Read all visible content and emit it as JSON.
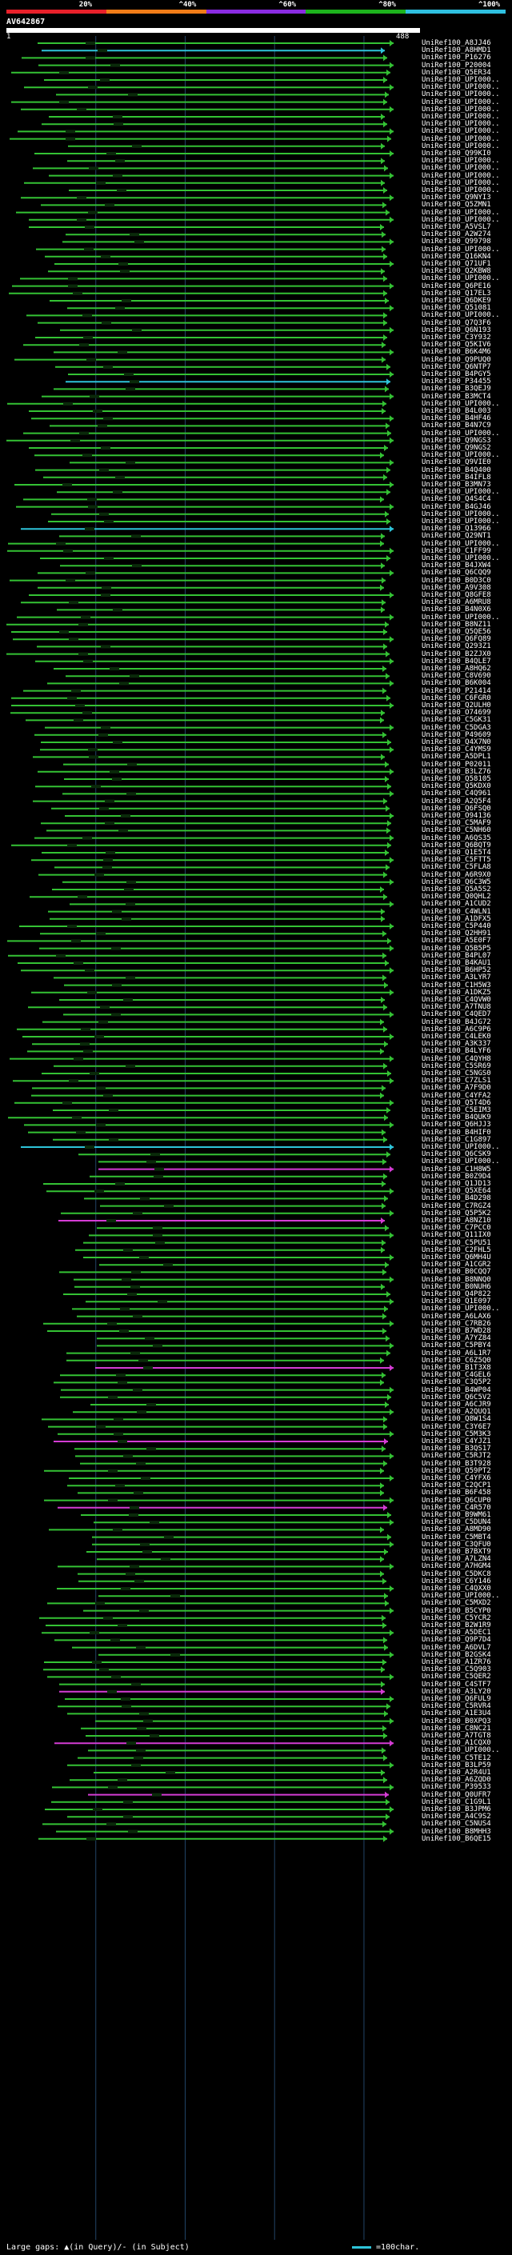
{
  "scale": {
    "ticks": [
      "20%",
      "^40%",
      "^60%",
      "^80%",
      "^100%"
    ],
    "colors": [
      "#e8202a",
      "#f07c18",
      "#8a2be2",
      "#1db31d",
      "#2fc0e0"
    ]
  },
  "query": {
    "id": "AV642867",
    "start": "1",
    "end": "488"
  },
  "colors": {
    "green": "#34c234",
    "cyan": "#2ec4d9",
    "magenta": "#d43cd4",
    "grid": "#224466"
  },
  "hits": [
    "UniRef100_A8JJ46",
    "UniRef100_A8HMD1",
    "UniRef100_P16276",
    "UniRef100_P20004",
    "UniRef100_Q5ER34",
    "UniRef100_UPI000..",
    "UniRef100_UPI000..",
    "UniRef100_UPI000..",
    "UniRef100_UPI000..",
    "UniRef100_UPI000..",
    "UniRef100_UPI000..",
    "UniRef100_UPI000..",
    "UniRef100_UPI000..",
    "UniRef100_UPI000..",
    "UniRef100_UPI000..",
    "UniRef100_Q99KI0",
    "UniRef100_UPI000..",
    "UniRef100_UPI000..",
    "UniRef100_UPI000..",
    "UniRef100_UPI000..",
    "UniRef100_UPI000..",
    "UniRef100_Q9NYI3",
    "UniRef100_Q5ZMN1",
    "UniRef100_UPI000..",
    "UniRef100_UPI000..",
    "UniRef100_A5VSL7",
    "UniRef100_A2W274",
    "UniRef100_Q99798",
    "UniRef100_UPI000..",
    "UniRef100_Q16KN4",
    "UniRef100_Q71UF1",
    "UniRef100_Q2KBW8",
    "UniRef100_UPI000..",
    "UniRef100_Q6PE16",
    "UniRef100_Q17EL3",
    "UniRef100_Q6DKE9",
    "UniRef100_Q51081",
    "UniRef100_UPI000..",
    "UniRef100_Q7Q3F6",
    "UniRef100_Q6N193",
    "UniRef100_C3Y932",
    "UniRef100_Q5KIV6",
    "UniRef100_B6K4M6",
    "UniRef100_Q9PUQ0",
    "UniRef100_Q6NTP7",
    "UniRef100_B4PGY5",
    "UniRef100_P34455",
    "UniRef100_B3QEJ9",
    "UniRef100_B3MCT4",
    "UniRef100_UPI000..",
    "UniRef100_B4L003",
    "UniRef100_B4HF46",
    "UniRef100_B4N7C9",
    "UniRef100_UPI000..",
    "UniRef100_Q9NGS3",
    "UniRef100_Q9NGS2",
    "UniRef100_UPI000..",
    "UniRef100_Q9VIE0",
    "UniRef100_B4Q400",
    "UniRef100_B4IFL8",
    "UniRef100_B3MN73",
    "UniRef100_UPI000..",
    "UniRef100_Q4S4C4",
    "UniRef100_B4GJ46",
    "UniRef100_UPI000..",
    "UniRef100_UPI000..",
    "UniRef100_Q13966",
    "UniRef100_Q29NT1",
    "UniRef100_UPI000..",
    "UniRef100_C1FF99",
    "UniRef100_UPI000..",
    "UniRef100_B4JXW4",
    "UniRef100_Q6CQQ9",
    "UniRef100_B0D3C0",
    "UniRef100_A9V308",
    "UniRef100_Q8GFE8",
    "UniRef100_A6MRU8",
    "UniRef100_B4N0X6",
    "UniRef100_UPI000..",
    "UniRef100_B8NZ11",
    "UniRef100_Q5QE56",
    "UniRef100_Q6FQ89",
    "UniRef100_Q293Z1",
    "UniRef100_B2ZJX0",
    "UniRef100_B4QLE7",
    "UniRef100_A8HQ62",
    "UniRef100_C8V690",
    "UniRef100_B6K004",
    "UniRef100_P21414",
    "UniRef100_C6FGR0",
    "UniRef100_Q2ULH0",
    "UniRef100_O74699",
    "UniRef100_C5GK31",
    "UniRef100_C5DGA3",
    "UniRef100_P49609",
    "UniRef100_Q4X7N0",
    "UniRef100_C4YMS9",
    "UniRef100_A5DPL1",
    "UniRef100_P02011",
    "UniRef100_B3LZ76",
    "UniRef100_Q58105",
    "UniRef100_Q5KDX0",
    "UniRef100_C4Q961",
    "UniRef100_A2Q5F4",
    "UniRef100_Q6FSQ0",
    "UniRef100_O94136",
    "UniRef100_C5MAF9",
    "UniRef100_C5NH60",
    "UniRef100_A6QS35",
    "UniRef100_Q6BQT9",
    "UniRef100_Q1E5T4",
    "UniRef100_C5FTT5",
    "UniRef100_C5FLA8",
    "UniRef100_A6R9X0",
    "UniRef100_Q6C3W5",
    "UniRef100_Q5A5S2",
    "UniRef100_Q0QHL2",
    "UniRef100_A1CUD2",
    "UniRef100_C4WLN1",
    "UniRef100_A1DFX5",
    "UniRef100_C5P440",
    "UniRef100_Q2HH91",
    "UniRef100_A5E0F7",
    "UniRef100_Q5B5P5",
    "UniRef100_B4PL07",
    "UniRef100_B4KAU1",
    "UniRef100_B6HP52",
    "UniRef100_A3LYR7",
    "UniRef100_C1H5W3",
    "UniRef100_A1DKZ5",
    "UniRef100_C4QVW0",
    "UniRef100_A7TNU8",
    "UniRef100_C4QED7",
    "UniRef100_B4JG72",
    "UniRef100_A6C9P6",
    "UniRef100_C4LEK0",
    "UniRef100_A3K337",
    "UniRef100_B4LYF6",
    "UniRef100_C4QYH8",
    "UniRef100_C5SR69",
    "UniRef100_C5NGS0",
    "UniRef100_C7ZLS1",
    "UniRef100_A7F9D0",
    "UniRef100_C4YFA2",
    "UniRef100_Q5T4D6",
    "UniRef100_C5EIM3",
    "UniRef100_B4QUK9",
    "UniRef100_Q6HJJ3",
    "UniRef100_B4HIF0",
    "UniRef100_C1G897",
    "UniRef100_UPI000..",
    "UniRef100_Q6CSK9",
    "UniRef100_UPI000..",
    "UniRef100_C1H8W5",
    "UniRef100_B0Z9D4",
    "UniRef100_Q1JD13",
    "UniRef100_Q5XE64",
    "UniRef100_B4D298",
    "UniRef100_C7RGZ4",
    "UniRef100_Q5P5K2",
    "UniRef100_A8NZ10",
    "UniRef100_C7PCC0",
    "UniRef100_Q11IX0",
    "UniRef100_C5PU51",
    "UniRef100_C2FHL5",
    "UniRef100_Q6MH4U",
    "UniRef100_A1CGR2",
    "UniRef100_B0CQQ7",
    "UniRef100_B8NNQ0",
    "UniRef100_B0NUH6",
    "UniRef100_Q4P822",
    "UniRef100_Q1E097",
    "UniRef100_UPI000..",
    "UniRef100_A6LAX6",
    "UniRef100_C7RB26",
    "UniRef100_B7WD28",
    "UniRef100_A7YZ84",
    "UniRef100_C5PBY4",
    "UniRef100_A6L1R7",
    "UniRef100_C6Z5Q0",
    "UniRef100_B1T3X8",
    "UniRef100_C4GEL6",
    "UniRef100_C3Q5P2",
    "UniRef100_B4WP04",
    "UniRef100_Q6C5V2",
    "UniRef100_A6CJR9",
    "UniRef100_A2QUQ1",
    "UniRef100_Q8W1S4",
    "UniRef100_C3Y6E7",
    "UniRef100_C5M3K3",
    "UniRef100_C4YJZ1",
    "UniRef100_B3QS17",
    "UniRef100_C5RJT2",
    "UniRef100_B3T928",
    "UniRef100_Q59PT2",
    "UniRef100_C4YFX6",
    "UniRef100_C2QCP1",
    "UniRef100_B6F458",
    "UniRef100_Q6CUP0",
    "UniRef100_C4R570",
    "UniRef100_B9WM61",
    "UniRef100_C5DUN4",
    "UniRef100_A8MD90",
    "UniRef100_C5MBT4",
    "UniRef100_C3QFU0",
    "UniRef100_B7BXT9",
    "UniRef100_A7LZN4",
    "UniRef100_A7HGM4",
    "UniRef100_C5DKC8",
    "UniRef100_C6Y146",
    "UniRef100_C4QXX0",
    "UniRef100_UPI000..",
    "UniRef100_C5MXD2",
    "UniRef100_B5CYP0",
    "UniRef100_C5YCR2",
    "UniRef100_B2W1R9",
    "UniRef100_A5DEC1",
    "UniRef100_Q9P7D4",
    "UniRef100_A6DVL7",
    "UniRef100_B2GSK4",
    "UniRef100_A1ZR76",
    "UniRef100_C5Q903",
    "UniRef100_C5QER2",
    "UniRef100_C4STF7",
    "UniRef100_A3LY20",
    "UniRef100_Q6FUL9",
    "UniRef100_C5RVR4",
    "UniRef100_A1E3U4",
    "UniRef100_B0XPQ3",
    "UniRef100_C8NC21",
    "UniRef100_A7TGT8",
    "UniRef100_A1CQX0",
    "UniRef100_UPI000..",
    "UniRef100_C5TE12",
    "UniRef100_B3LP59",
    "UniRef100_A2R4U1",
    "UniRef100_A6ZQD0",
    "UniRef100_P39533",
    "UniRef100_Q0UFR7",
    "UniRef100_C1G9L1",
    "UniRef100_B3JPM6",
    "UniRef100_A4C9S2",
    "UniRef100_C5NUS4",
    "UniRef100_B8MHH3",
    "UniRef100_B6QE15"
  ],
  "footer": {
    "text": "Large gaps: ▲(in Query)/- (in Subject)",
    "legend": "=100char."
  }
}
